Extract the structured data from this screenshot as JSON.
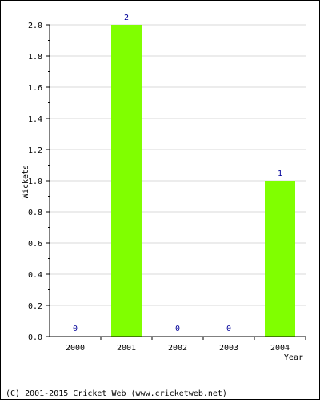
{
  "chart_data": {
    "type": "bar",
    "title": "",
    "xlabel": "Year",
    "ylabel": "Wickets",
    "categories": [
      "2000",
      "2001",
      "2002",
      "2003",
      "2004"
    ],
    "values": [
      0,
      2,
      0,
      0,
      1
    ],
    "value_labels": [
      "0",
      "2",
      "0",
      "0",
      "1"
    ],
    "ylim": [
      0,
      2.0
    ],
    "yticks": [
      "0.0",
      "0.2",
      "0.4",
      "0.6",
      "0.8",
      "1.0",
      "1.2",
      "1.4",
      "1.6",
      "1.8",
      "2.0"
    ],
    "grid": true,
    "legend": "none",
    "colors": {
      "bar": "#80ff00",
      "value_label": "#000099",
      "grid": "#d9d9d9",
      "axis": "#000000"
    }
  },
  "footer": {
    "copyright": "(C) 2001-2015 Cricket Web (www.cricketweb.net)"
  }
}
